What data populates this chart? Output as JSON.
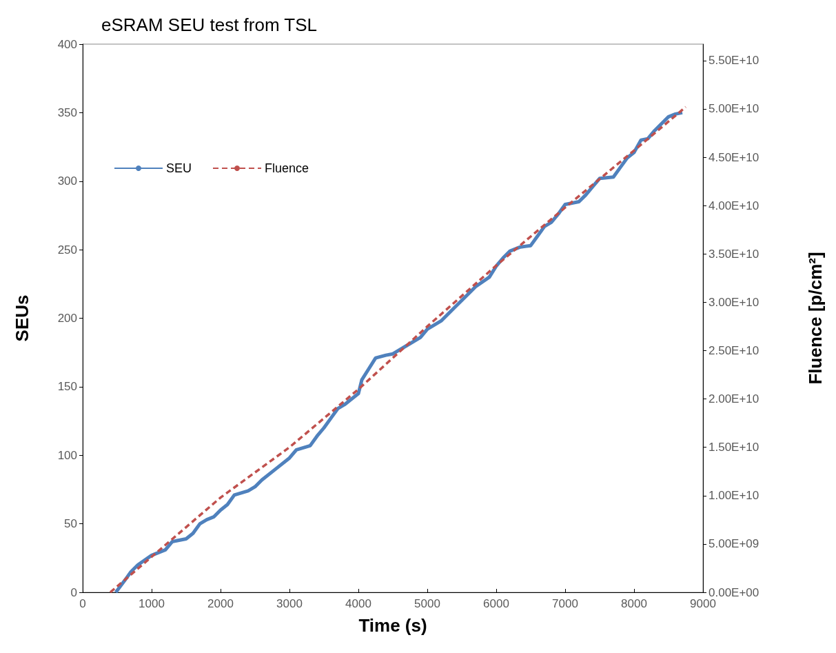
{
  "chart_data": {
    "type": "line",
    "title": "eSRAM SEU test from TSL",
    "xlabel": "Time (s)",
    "ylabel": "SEUs",
    "y2label": "Fluence [p/cm²]",
    "xlim": [
      0,
      9000
    ],
    "xticks": [
      0,
      1000,
      2000,
      3000,
      4000,
      5000,
      6000,
      7000,
      8000,
      9000
    ],
    "ylim": [
      0,
      400
    ],
    "yticks": [
      0,
      50,
      100,
      150,
      200,
      250,
      300,
      350,
      400
    ],
    "y2lim": [
      0,
      56700000000
    ],
    "y2ticks": [
      {
        "value": 0,
        "label": "0.00E+00"
      },
      {
        "value": 5000000000,
        "label": "5.00E+09"
      },
      {
        "value": 10000000000,
        "label": "1.00E+10"
      },
      {
        "value": 15000000000,
        "label": "1.50E+10"
      },
      {
        "value": 20000000000,
        "label": "2.00E+10"
      },
      {
        "value": 25000000000,
        "label": "2.50E+10"
      },
      {
        "value": 30000000000,
        "label": "3.00E+10"
      },
      {
        "value": 35000000000,
        "label": "3.50E+10"
      },
      {
        "value": 40000000000,
        "label": "4.00E+10"
      },
      {
        "value": 45000000000,
        "label": "4.50E+10"
      },
      {
        "value": 50000000000,
        "label": "5.00E+10"
      },
      {
        "value": 55000000000,
        "label": "5.50E+10"
      }
    ],
    "grid": false,
    "legend": "left",
    "marker": "none",
    "series": [
      {
        "name": "SEU",
        "color": "#4f81bd",
        "line_style": "solid",
        "x": [
          480,
          600,
          700,
          800,
          1000,
          1200,
          1300,
          1500,
          1600,
          1700,
          1800,
          1900,
          2000,
          2100,
          2200,
          2400,
          2500,
          2600,
          2800,
          3000,
          3100,
          3300,
          3400,
          3500,
          3600,
          3700,
          3800,
          3900,
          4000,
          4050,
          4150,
          4250,
          4400,
          4500,
          4700,
          4900,
          5000,
          5200,
          5400,
          5600,
          5700,
          5900,
          6000,
          6100,
          6200,
          6350,
          6500,
          6600,
          6700,
          6800,
          6900,
          7000,
          7200,
          7300,
          7400,
          7500,
          7700,
          7800,
          7900,
          8000,
          8100,
          8200,
          8300,
          8400,
          8500,
          8600,
          8700
        ],
        "values": [
          0,
          8,
          15,
          20,
          27,
          31,
          37,
          39,
          43,
          50,
          53,
          55,
          60,
          64,
          71,
          74,
          77,
          82,
          90,
          98,
          104,
          107,
          114,
          120,
          127,
          134,
          137,
          141,
          145,
          155,
          163,
          171,
          173,
          174,
          180,
          186,
          192,
          198,
          208,
          218,
          223,
          230,
          238,
          244,
          249,
          252,
          253,
          260,
          267,
          270,
          276,
          283,
          285,
          290,
          296,
          302,
          303,
          310,
          317,
          321,
          330,
          331,
          337,
          342,
          347,
          349,
          350
        ]
      },
      {
        "name": "Fluence",
        "color": "#c0504d",
        "line_style": "dashed",
        "axis": "y2",
        "x": [
          400,
          2000,
          3000,
          4000,
          5000,
          6000,
          7000,
          8000,
          8750
        ],
        "values": [
          0,
          9800000000,
          15000000000,
          21000000000,
          27500000000,
          33800000000,
          39800000000,
          45700000000,
          50200000000
        ]
      }
    ]
  }
}
